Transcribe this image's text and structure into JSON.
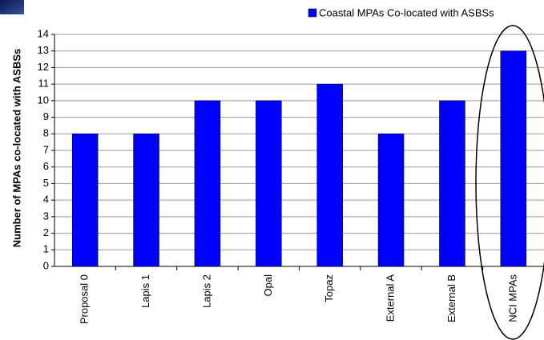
{
  "chart_data": {
    "type": "bar",
    "y_label": "Number of MPAs co-located with ASBSs",
    "categories": [
      "Proposal 0",
      "Lapis 1",
      "Lapis 2",
      "Opal",
      "Topaz",
      "External A",
      "External B",
      "NCI MPAs"
    ],
    "series": [
      {
        "name": "Coastal MPAs Co-located with ASBSs",
        "color": "#0000ff",
        "values": [
          8,
          8,
          10,
          10,
          11,
          8,
          10,
          13
        ]
      }
    ],
    "ylim": [
      0,
      14
    ],
    "yticks": [
      0,
      1,
      2,
      3,
      4,
      5,
      6,
      7,
      8,
      9,
      10,
      11,
      12,
      13,
      14
    ],
    "grid": true,
    "legend": "top-right"
  }
}
